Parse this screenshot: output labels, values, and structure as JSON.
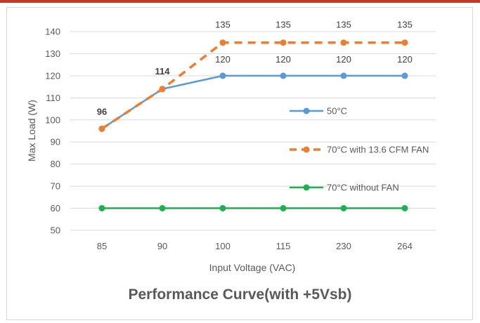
{
  "chart_data": {
    "type": "line",
    "title": "Performance Curve(with +5Vsb)",
    "xlabel": "Input Voltage (VAC)",
    "ylabel": "Max Load (W)",
    "categories": [
      "85",
      "90",
      "100",
      "115",
      "230",
      "264"
    ],
    "ylim": [
      50,
      140
    ],
    "yticks": [
      50,
      60,
      70,
      80,
      90,
      100,
      110,
      120,
      130,
      140
    ],
    "grid": true,
    "legend_position": "right",
    "series": [
      {
        "name": "50°C",
        "values": [
          96,
          114,
          120,
          120,
          120,
          120
        ],
        "color": "#5b9bd5",
        "dashed": false,
        "labels": [
          "",
          "",
          "120",
          "120",
          "120",
          "120"
        ]
      },
      {
        "name": "70°C with 13.6 CFM FAN",
        "values": [
          96,
          114,
          135,
          135,
          135,
          135
        ],
        "color": "#ed7d31",
        "dashed": true,
        "labels": [
          "96",
          "114",
          "135",
          "135",
          "135",
          "135"
        ]
      },
      {
        "name": "70°C without FAN",
        "values": [
          60,
          60,
          60,
          60,
          60,
          60
        ],
        "color": "#1fb14f",
        "dashed": false,
        "labels": [
          "",
          "",
          "",
          "",
          "",
          ""
        ]
      }
    ]
  }
}
